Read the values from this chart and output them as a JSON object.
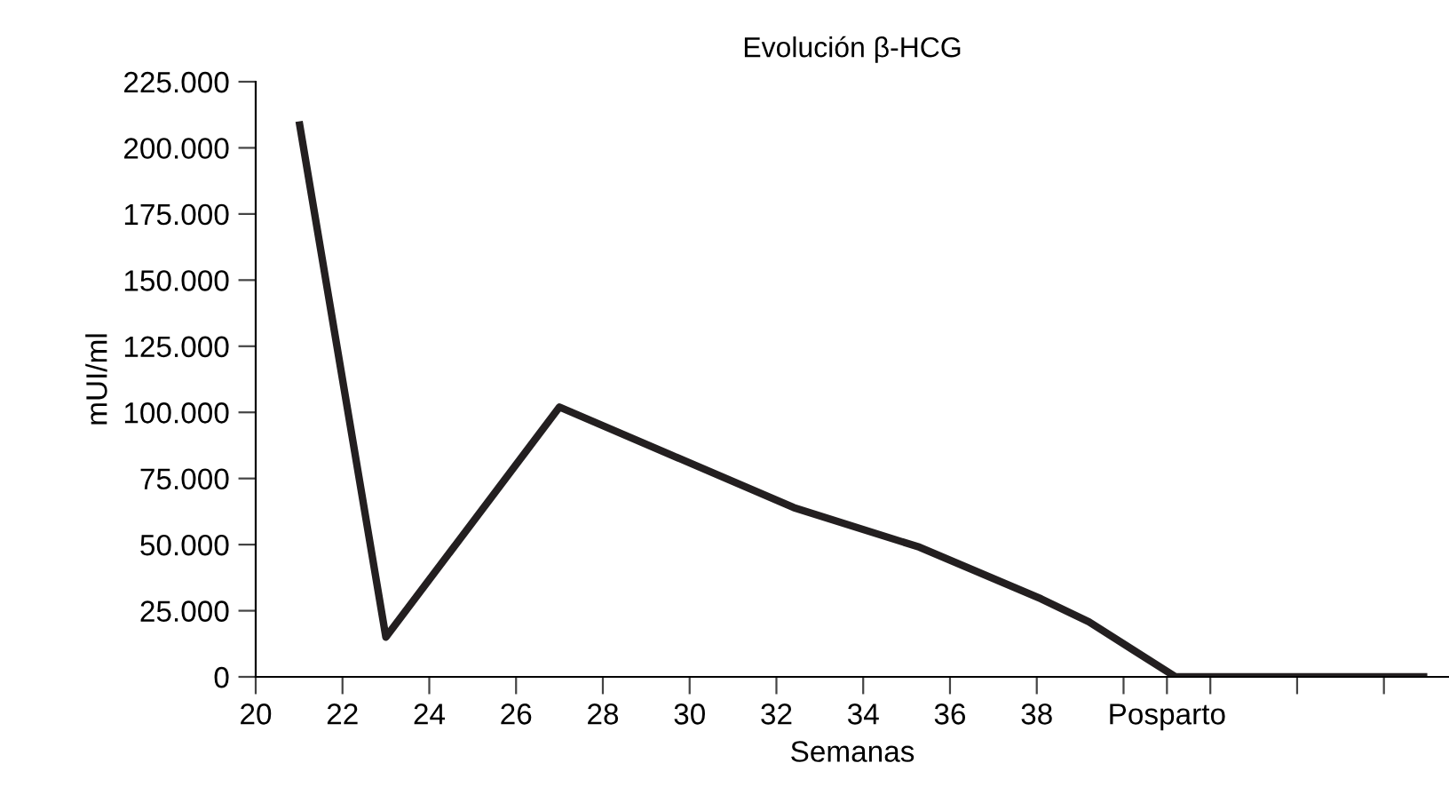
{
  "chart_data": {
    "type": "line",
    "title": "Evolución β-HCG",
    "xlabel": "Semanas",
    "ylabel": "mUI/ml",
    "x": [
      21,
      23,
      27,
      32.4,
      35.3,
      38.1,
      39.2,
      41.2,
      47
    ],
    "series": [
      {
        "color": "#231f20",
        "values": [
          210000,
          15000,
          102000,
          64000,
          49000,
          29500,
          20800,
          0,
          0
        ]
      }
    ],
    "xlim": [
      20,
      47.5
    ],
    "xticks": [
      20,
      22,
      24,
      26,
      28,
      30,
      32,
      34,
      36,
      38,
      {
        "value": 40,
        "label": null
      },
      {
        "value": 41,
        "label": "Posparto"
      },
      {
        "value": 42,
        "label": null
      },
      {
        "value": 44,
        "label": null
      },
      {
        "value": 46,
        "label": null
      }
    ],
    "ylim": [
      0,
      225000
    ],
    "yticks": [
      {
        "value": 0,
        "label": "0"
      },
      {
        "value": 25000,
        "label": "25.000"
      },
      {
        "value": 50000,
        "label": "50.000"
      },
      {
        "value": 75000,
        "label": "75.000"
      },
      {
        "value": 100000,
        "label": "100.000"
      },
      {
        "value": 125000,
        "label": "125.000"
      },
      {
        "value": 150000,
        "label": "150.000"
      },
      {
        "value": 175000,
        "label": "175.000"
      },
      {
        "value": 200000,
        "label": "200.000"
      },
      {
        "value": 225000,
        "label": "225.000"
      }
    ],
    "grid": false,
    "legend": false,
    "marker": "none",
    "line_style": "solid"
  }
}
